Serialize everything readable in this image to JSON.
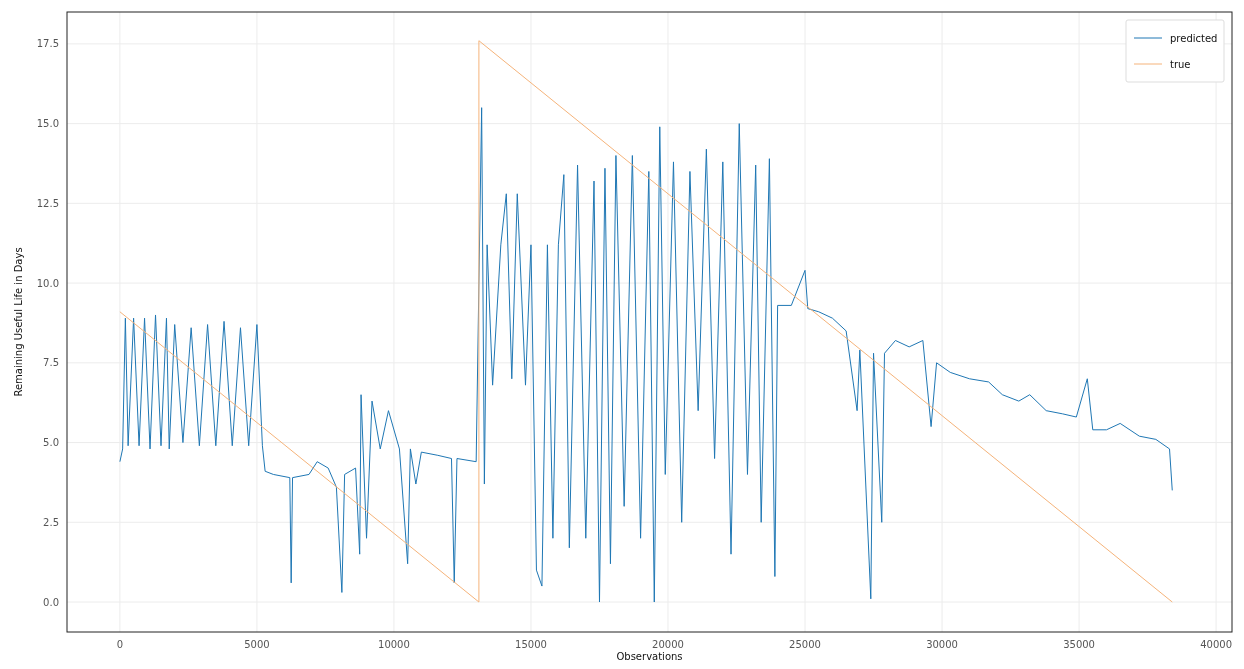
{
  "chart_data": {
    "type": "line",
    "xlabel": "Observations",
    "ylabel": "Remaining Useful Life in Days",
    "xlim": [
      -1930,
      40580
    ],
    "ylim": [
      -0.94,
      18.5
    ],
    "xticks": [
      0,
      5000,
      10000,
      15000,
      20000,
      25000,
      30000,
      35000,
      40000
    ],
    "yticks": [
      {
        "value": 0,
        "label": "0.0"
      },
      {
        "value": 2.5,
        "label": "2.5"
      },
      {
        "value": 5,
        "label": "5.0"
      },
      {
        "value": 7.5,
        "label": "7.5"
      },
      {
        "value": 10,
        "label": "10.0"
      },
      {
        "value": 12.5,
        "label": "12.5"
      },
      {
        "value": 15,
        "label": "15.0"
      },
      {
        "value": 17.5,
        "label": "17.5"
      }
    ],
    "grid": true,
    "legend": "top right",
    "line_style": "solid",
    "marker": "none",
    "series": [
      {
        "name": "predicted",
        "color": "#1f77b4",
        "x": [
          0,
          100,
          200,
          300,
          500,
          700,
          900,
          1100,
          1300,
          1500,
          1700,
          1800,
          2000,
          2300,
          2600,
          2900,
          3200,
          3500,
          3800,
          4100,
          4400,
          4700,
          5000,
          5200,
          5300,
          5600,
          6200,
          6250,
          6300,
          6900,
          7200,
          7600,
          7900,
          8100,
          8200,
          8600,
          8750,
          8800,
          9000,
          9200,
          9500,
          9800,
          10200,
          10500,
          10600,
          10800,
          11000,
          11600,
          12100,
          12200,
          12300,
          13000,
          13100,
          13200,
          13300,
          13400,
          13600,
          13900,
          14100,
          14300,
          14500,
          14800,
          15000,
          15200,
          15400,
          15600,
          15800,
          16000,
          16200,
          16400,
          16700,
          17000,
          17300,
          17500,
          17700,
          17900,
          18100,
          18400,
          18700,
          19000,
          19300,
          19500,
          19700,
          19900,
          20200,
          20500,
          20800,
          21100,
          21400,
          21700,
          22000,
          22300,
          22600,
          22900,
          23200,
          23400,
          23700,
          23900,
          24000,
          24500,
          25000,
          25100,
          25500,
          26000,
          26500,
          26900,
          27000,
          27400,
          27500,
          27800,
          27900,
          28300,
          28800,
          29300,
          29600,
          29800,
          30300,
          31000,
          31700,
          32200,
          32800,
          33200,
          33800,
          34400,
          34900,
          35300,
          35500,
          36000,
          36500,
          37200,
          37800,
          38300,
          38400
        ],
        "values": [
          4.4,
          4.8,
          8.9,
          4.9,
          8.9,
          4.9,
          8.9,
          4.8,
          9.0,
          4.9,
          8.9,
          4.8,
          8.7,
          5.0,
          8.6,
          4.9,
          8.7,
          4.9,
          8.8,
          4.9,
          8.6,
          4.9,
          8.7,
          4.9,
          4.1,
          4.0,
          3.9,
          0.6,
          3.9,
          4.0,
          4.4,
          4.2,
          3.6,
          0.3,
          4.0,
          4.2,
          1.5,
          6.5,
          2.0,
          6.3,
          4.8,
          6.0,
          4.8,
          1.2,
          4.8,
          3.7,
          4.7,
          4.6,
          4.5,
          0.6,
          4.5,
          4.4,
          10.0,
          15.5,
          3.7,
          11.2,
          6.8,
          11.2,
          12.8,
          7.0,
          12.8,
          6.8,
          11.2,
          1.0,
          0.5,
          11.2,
          2.0,
          11.2,
          13.4,
          1.7,
          13.7,
          2.0,
          13.2,
          0.0,
          13.6,
          1.2,
          14.0,
          3.0,
          14.0,
          2.0,
          13.5,
          0.0,
          14.9,
          4.0,
          13.8,
          2.5,
          13.5,
          6.0,
          14.2,
          4.5,
          13.8,
          1.5,
          15.0,
          4.0,
          13.7,
          2.5,
          13.9,
          0.8,
          9.3,
          9.3,
          10.4,
          9.2,
          9.1,
          8.9,
          8.5,
          6.0,
          7.9,
          0.1,
          7.8,
          2.5,
          7.8,
          8.2,
          8.0,
          8.2,
          5.5,
          7.5,
          7.2,
          7.0,
          6.9,
          6.5,
          6.3,
          6.5,
          6.0,
          5.9,
          5.8,
          7.0,
          5.4,
          5.4,
          5.6,
          5.2,
          5.1,
          4.8,
          3.5
        ]
      },
      {
        "name": "true",
        "color": "#f5b37a",
        "x": [
          0,
          13100,
          13100,
          38400
        ],
        "values": [
          9.1,
          0,
          17.6,
          0
        ]
      }
    ]
  }
}
